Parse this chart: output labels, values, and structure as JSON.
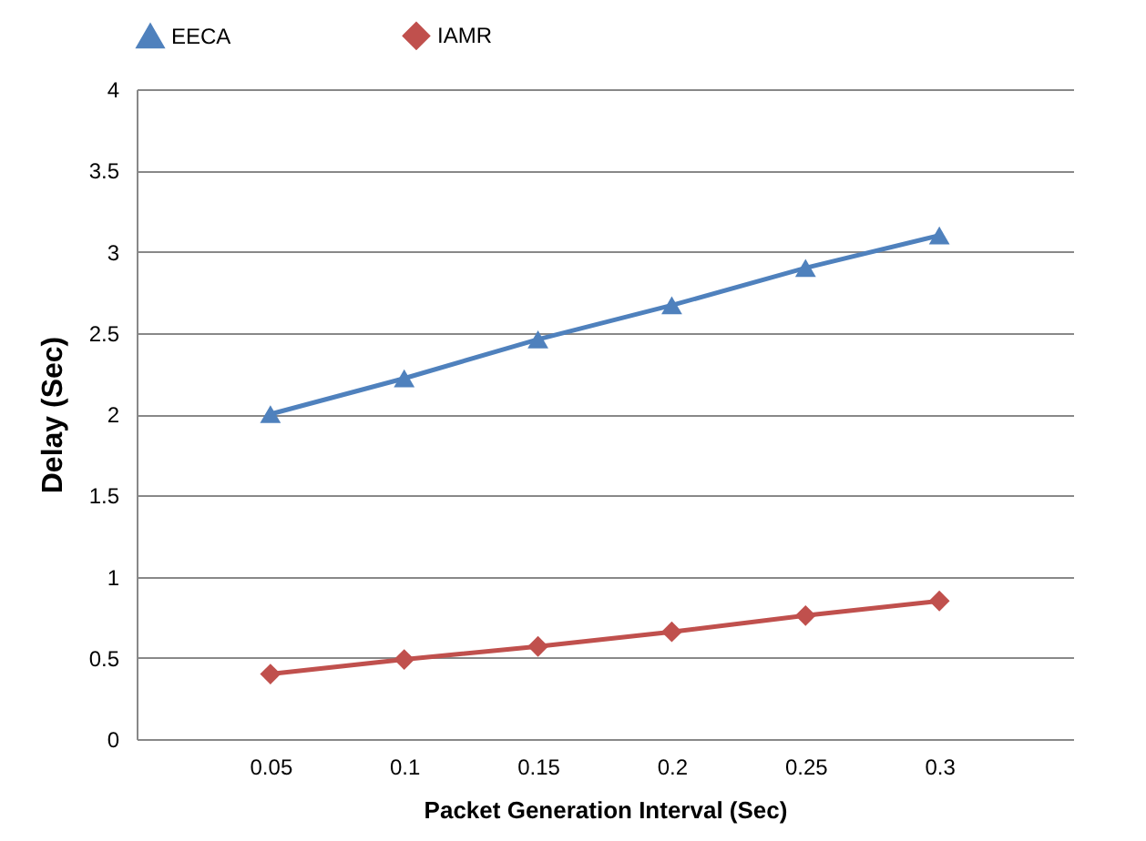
{
  "chart_data": {
    "type": "line",
    "xlabel": "Packet Generation Interval (Sec)",
    "ylabel": "Delay (Sec)",
    "categories": [
      "0.05",
      "0.1",
      "0.15",
      "0.2",
      "0.25",
      "0.3"
    ],
    "series": [
      {
        "name": "EECA",
        "color": "#4f81bd",
        "marker": "triangle",
        "values": [
          2.0,
          2.22,
          2.46,
          2.67,
          2.9,
          3.1
        ]
      },
      {
        "name": "IAMR",
        "color": "#c0504d",
        "marker": "diamond",
        "values": [
          0.4,
          0.49,
          0.57,
          0.66,
          0.76,
          0.85
        ]
      }
    ],
    "ylim": [
      0,
      4
    ],
    "yticks": [
      0,
      0.5,
      1,
      1.5,
      2,
      2.5,
      3,
      3.5,
      4
    ],
    "grid": "y",
    "legend": "top"
  }
}
